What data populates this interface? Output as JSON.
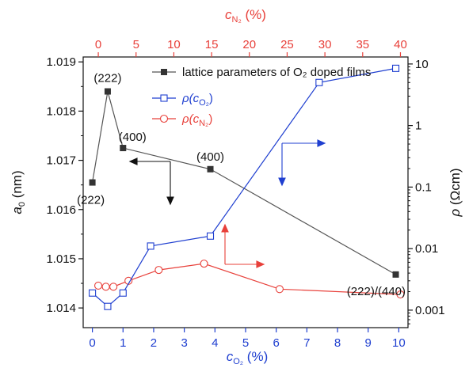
{
  "colors": {
    "lattice": "#555555",
    "lattice_marker": "#333333",
    "rho_O2": "#1f3fd0",
    "rho_N2": "#e8403a",
    "black": "#111111"
  },
  "chart_data": {
    "type": "line",
    "x_bottom": {
      "label_main": "c",
      "label_sub": "O₂",
      "label_unit": " (%)",
      "range": [
        -0.3,
        10.3
      ],
      "ticks": [
        0,
        1,
        2,
        3,
        4,
        5,
        6,
        7,
        8,
        9,
        10
      ],
      "tick_labels": [
        "0",
        "1",
        "2",
        "3",
        "4",
        "5",
        "6",
        "7",
        "8",
        "9",
        "10"
      ],
      "color": "#1f3fd0"
    },
    "x_top": {
      "label_main": "c",
      "label_sub": "N₂",
      "label_unit": " (%)",
      "range": [
        -2,
        41
      ],
      "ticks": [
        0,
        5,
        10,
        15,
        20,
        25,
        30,
        35,
        40
      ],
      "tick_labels": [
        "0",
        "5",
        "10",
        "15",
        "20",
        "25",
        "30",
        "35",
        "40"
      ],
      "color": "#e8403a"
    },
    "y_left": {
      "label_main": "a",
      "label_sub": "0",
      "label_unit": " (nm)",
      "range": [
        1.0136,
        1.0191
      ],
      "ticks": [
        1.014,
        1.015,
        1.016,
        1.017,
        1.018,
        1.019
      ],
      "tick_labels": [
        "1.014",
        "1.015",
        "1.016",
        "1.017",
        "1.018",
        "1.019"
      ]
    },
    "y_right": {
      "label_main": "ρ",
      "label_unit": " (Ωcm)",
      "scale": "log",
      "range": [
        0.00052,
        13
      ],
      "ticks": [
        0.001,
        0.01,
        0.1,
        1,
        10
      ],
      "tick_labels": [
        "0.001",
        "0.01",
        "0.1",
        "1",
        "10"
      ]
    },
    "series": [
      {
        "name": "lattice parameters of O₂ doped films",
        "axis": "left",
        "marker": "filled-square",
        "x": [
          0,
          0.5,
          1.0,
          3.85,
          9.9
        ],
        "y": [
          1.01655,
          1.0184,
          1.01725,
          1.01682,
          1.01468
        ]
      },
      {
        "name_main": "ρ(c",
        "name_sub": "O₂",
        "name_end": ")",
        "axis": "right",
        "marker": "open-square",
        "x": [
          0,
          0.5,
          1.0,
          1.9,
          3.85,
          7.4,
          9.9
        ],
        "y": [
          0.0019,
          0.00115,
          0.0019,
          0.011,
          0.016,
          5.0,
          8.5
        ]
      },
      {
        "name_main": "ρ(c",
        "name_sub": "N₂",
        "name_end": ")",
        "axis": "right",
        "axis_x": "top",
        "marker": "open-circle",
        "x": [
          0,
          1,
          2,
          4,
          8,
          14,
          24,
          40
        ],
        "y": [
          0.0025,
          0.0024,
          0.0024,
          0.003,
          0.0045,
          0.0057,
          0.0022,
          0.0018
        ]
      }
    ],
    "annotations": [
      {
        "text": "(222)",
        "x": 0.5,
        "y": 1.0184
      },
      {
        "text": "(400)",
        "x": 1.0,
        "y": 1.01725
      },
      {
        "text": "(400)",
        "x": 3.85,
        "y": 1.01682
      },
      {
        "text": "(222)",
        "x": 0,
        "y": 1.01655
      },
      {
        "text": "(222)/(440)",
        "x": 9.9,
        "y": 1.01468
      }
    ],
    "legend_placement": "top-center",
    "grid": false
  }
}
